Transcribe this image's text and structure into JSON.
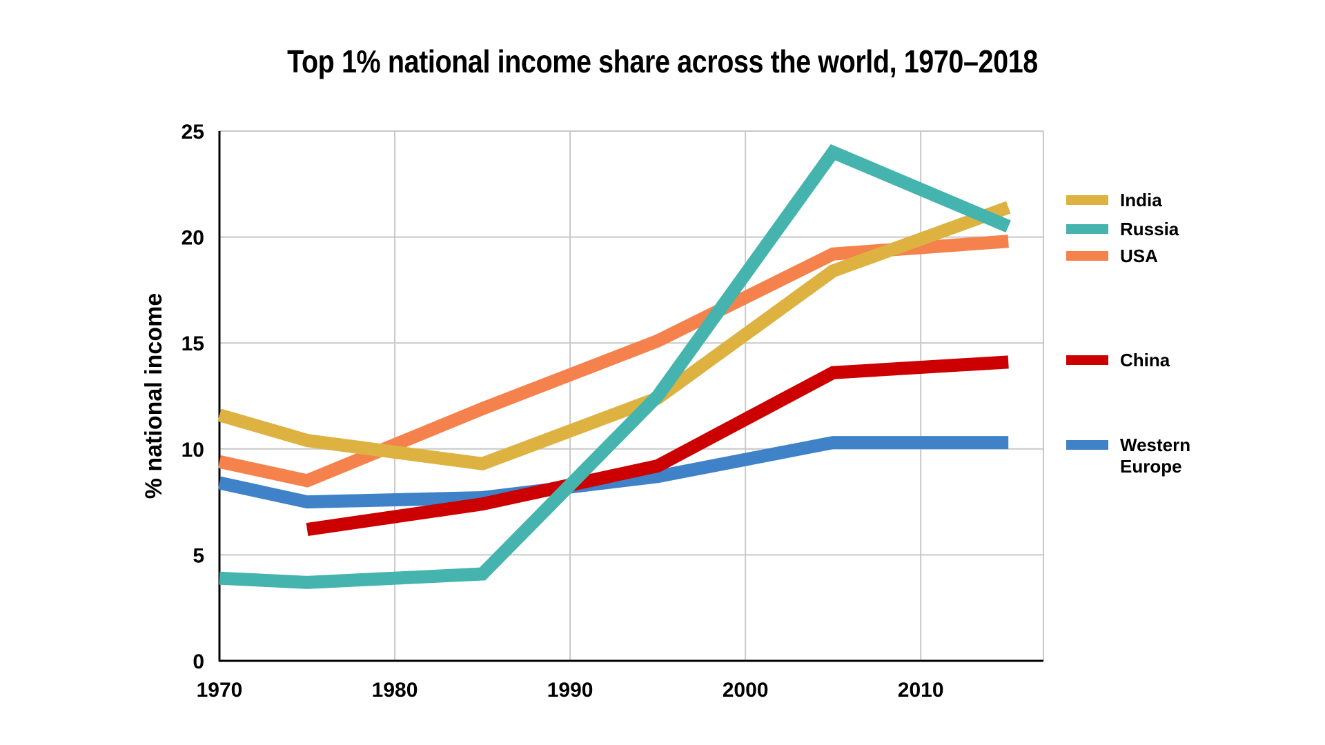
{
  "chart_data": {
    "type": "line",
    "title": "Top 1% national income share across the world, 1970–2018",
    "xlabel": "",
    "ylabel": "% national income",
    "xlim": [
      1970,
      2017
    ],
    "ylim": [
      0,
      25
    ],
    "x_ticks": [
      1970,
      1980,
      1990,
      2000,
      2010
    ],
    "y_ticks": [
      0,
      5,
      10,
      15,
      20,
      25
    ],
    "grid": true,
    "legend_position": "right",
    "series": [
      {
        "name": "India",
        "color": "#DDB240",
        "points": [
          [
            1970,
            11.6
          ],
          [
            1975,
            10.4
          ],
          [
            1985,
            9.3
          ],
          [
            1995,
            12.4
          ],
          [
            2005,
            18.4
          ],
          [
            2015,
            21.4
          ]
        ]
      },
      {
        "name": "Russia",
        "color": "#45B4AE",
        "points": [
          [
            1970,
            3.9
          ],
          [
            1975,
            3.7
          ],
          [
            1985,
            4.1
          ],
          [
            1995,
            12.5
          ],
          [
            2005,
            24.0
          ],
          [
            2015,
            20.5
          ]
        ]
      },
      {
        "name": "USA",
        "color": "#F5824D",
        "points": [
          [
            1970,
            9.4
          ],
          [
            1975,
            8.5
          ],
          [
            1985,
            11.9
          ],
          [
            1995,
            15.1
          ],
          [
            2005,
            19.2
          ],
          [
            2015,
            19.8
          ]
        ]
      },
      {
        "name": "China",
        "color": "#CC0000",
        "points": [
          [
            1975,
            6.2
          ],
          [
            1985,
            7.4
          ],
          [
            1995,
            9.2
          ],
          [
            2005,
            13.6
          ],
          [
            2015,
            14.1
          ]
        ]
      },
      {
        "name": "Western\nEurope",
        "color": "#3F82C8",
        "points": [
          [
            1970,
            8.4
          ],
          [
            1975,
            7.5
          ],
          [
            1985,
            7.7
          ],
          [
            1995,
            8.7
          ],
          [
            2005,
            10.3
          ],
          [
            2015,
            10.3
          ]
        ]
      }
    ]
  }
}
